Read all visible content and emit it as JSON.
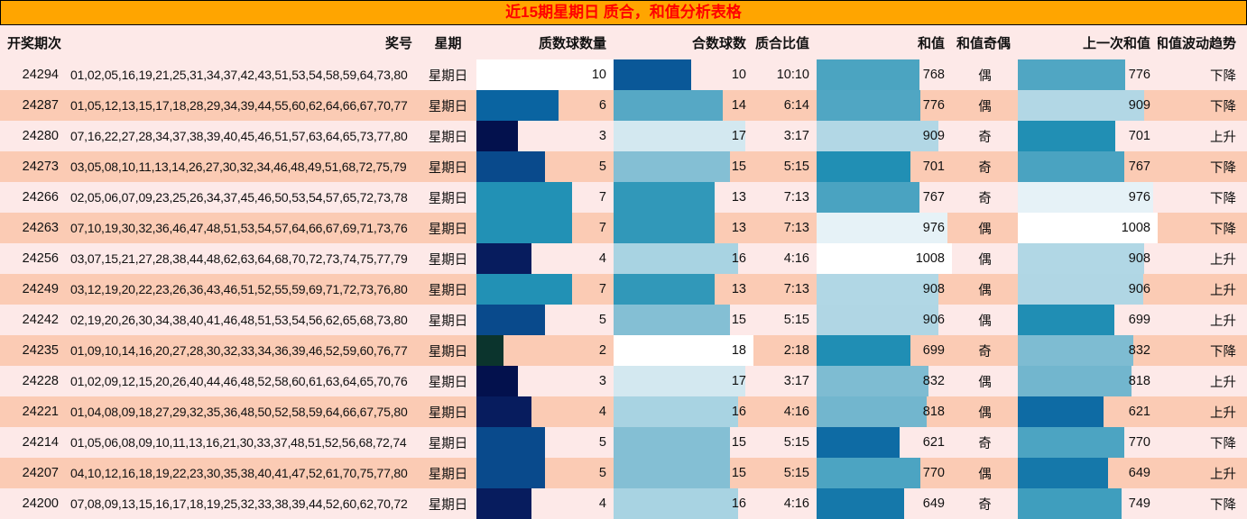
{
  "title": "近15期星期日 质合，和值分析表格",
  "colors": {
    "title_bg": "#FFA500",
    "title_text": "#FF0000",
    "row_light": "#FDE9E8",
    "row_salmon": "#FBCBB4",
    "text": "#111111",
    "bar_gradient_stops": [
      [
        0.0,
        "#0b342d"
      ],
      [
        0.2,
        "#0b342d"
      ],
      [
        0.3,
        "#03114d"
      ],
      [
        0.4,
        "#071c5e"
      ],
      [
        0.5,
        "#094a8c"
      ],
      [
        0.6,
        "#0a64a1"
      ],
      [
        0.7,
        "#2291b5"
      ],
      [
        0.78,
        "#57a9c5"
      ],
      [
        0.83,
        "#82bed3"
      ],
      [
        0.89,
        "#a9d3e2"
      ],
      [
        0.94,
        "#cfe6ef"
      ],
      [
        1.0,
        "#ffffff"
      ]
    ]
  },
  "chart_data": {
    "type": "table",
    "title": "近15期星期日 质合，和值分析表格",
    "columns": [
      "开奖期次",
      "奖号",
      "星期",
      "质数球数量",
      "合数球数",
      "质合比值",
      "和值",
      "和值奇偶",
      "上一次和值",
      "和值波动趋势"
    ],
    "bar_columns": {
      "prime": {
        "axis_min": 0,
        "axis_max": 10
      },
      "composite": {
        "axis_min": 0,
        "axis_max": 18
      },
      "sum": {
        "axis_min": 0,
        "axis_max": 1008
      },
      "prev_sum": {
        "axis_min": 0,
        "axis_max": 1008
      }
    },
    "rows": [
      {
        "period": "24294",
        "numbers": "01,02,05,16,19,21,25,31,34,37,42,43,51,53,54,58,59,64,73,80",
        "week": "星期日",
        "prime": 10,
        "composite": 10,
        "ratio": "10:10",
        "sum": 768,
        "parity": "偶",
        "prev_sum": 776,
        "trend": "下降"
      },
      {
        "period": "24287",
        "numbers": "01,05,12,13,15,17,18,28,29,34,39,44,55,60,62,64,66,67,70,77",
        "week": "星期日",
        "prime": 6,
        "composite": 14,
        "ratio": "6:14",
        "sum": 776,
        "parity": "偶",
        "prev_sum": 909,
        "trend": "下降"
      },
      {
        "period": "24280",
        "numbers": "07,16,22,27,28,34,37,38,39,40,45,46,51,57,63,64,65,73,77,80",
        "week": "星期日",
        "prime": 3,
        "composite": 17,
        "ratio": "3:17",
        "sum": 909,
        "parity": "奇",
        "prev_sum": 701,
        "trend": "上升"
      },
      {
        "period": "24273",
        "numbers": "03,05,08,10,11,13,14,26,27,30,32,34,46,48,49,51,68,72,75,79",
        "week": "星期日",
        "prime": 5,
        "composite": 15,
        "ratio": "5:15",
        "sum": 701,
        "parity": "奇",
        "prev_sum": 767,
        "trend": "下降"
      },
      {
        "period": "24266",
        "numbers": "02,05,06,07,09,23,25,26,34,37,45,46,50,53,54,57,65,72,73,78",
        "week": "星期日",
        "prime": 7,
        "composite": 13,
        "ratio": "7:13",
        "sum": 767,
        "parity": "奇",
        "prev_sum": 976,
        "trend": "下降"
      },
      {
        "period": "24263",
        "numbers": "07,10,19,30,32,36,46,47,48,51,53,54,57,64,66,67,69,71,73,76",
        "week": "星期日",
        "prime": 7,
        "composite": 13,
        "ratio": "7:13",
        "sum": 976,
        "parity": "偶",
        "prev_sum": 1008,
        "trend": "下降"
      },
      {
        "period": "24256",
        "numbers": "03,07,15,21,27,28,38,44,48,62,63,64,68,70,72,73,74,75,77,79",
        "week": "星期日",
        "prime": 4,
        "composite": 16,
        "ratio": "4:16",
        "sum": 1008,
        "parity": "偶",
        "prev_sum": 908,
        "trend": "上升"
      },
      {
        "period": "24249",
        "numbers": "03,12,19,20,22,23,26,36,43,46,51,52,55,59,69,71,72,73,76,80",
        "week": "星期日",
        "prime": 7,
        "composite": 13,
        "ratio": "7:13",
        "sum": 908,
        "parity": "偶",
        "prev_sum": 906,
        "trend": "上升"
      },
      {
        "period": "24242",
        "numbers": "02,19,20,26,30,34,38,40,41,46,48,51,53,54,56,62,65,68,73,80",
        "week": "星期日",
        "prime": 5,
        "composite": 15,
        "ratio": "5:15",
        "sum": 906,
        "parity": "偶",
        "prev_sum": 699,
        "trend": "上升"
      },
      {
        "period": "24235",
        "numbers": "01,09,10,14,16,20,27,28,30,32,33,34,36,39,46,52,59,60,76,77",
        "week": "星期日",
        "prime": 2,
        "composite": 18,
        "ratio": "2:18",
        "sum": 699,
        "parity": "奇",
        "prev_sum": 832,
        "trend": "下降"
      },
      {
        "period": "24228",
        "numbers": "01,02,09,12,15,20,26,40,44,46,48,52,58,60,61,63,64,65,70,76",
        "week": "星期日",
        "prime": 3,
        "composite": 17,
        "ratio": "3:17",
        "sum": 832,
        "parity": "偶",
        "prev_sum": 818,
        "trend": "上升"
      },
      {
        "period": "24221",
        "numbers": "01,04,08,09,18,27,29,32,35,36,48,50,52,58,59,64,66,67,75,80",
        "week": "星期日",
        "prime": 4,
        "composite": 16,
        "ratio": "4:16",
        "sum": 818,
        "parity": "偶",
        "prev_sum": 621,
        "trend": "上升"
      },
      {
        "period": "24214",
        "numbers": "01,05,06,08,09,10,11,13,16,21,30,33,37,48,51,52,56,68,72,74",
        "week": "星期日",
        "prime": 5,
        "composite": 15,
        "ratio": "5:15",
        "sum": 621,
        "parity": "奇",
        "prev_sum": 770,
        "trend": "下降"
      },
      {
        "period": "24207",
        "numbers": "04,10,12,16,18,19,22,23,30,35,38,40,41,47,52,61,70,75,77,80",
        "week": "星期日",
        "prime": 5,
        "composite": 15,
        "ratio": "5:15",
        "sum": 770,
        "parity": "偶",
        "prev_sum": 649,
        "trend": "上升"
      },
      {
        "period": "24200",
        "numbers": "07,08,09,13,15,16,17,18,19,25,32,33,38,39,44,52,60,62,70,72",
        "week": "星期日",
        "prime": 4,
        "composite": 16,
        "ratio": "4:16",
        "sum": 649,
        "parity": "奇",
        "prev_sum": 749,
        "trend": "下降"
      }
    ]
  }
}
